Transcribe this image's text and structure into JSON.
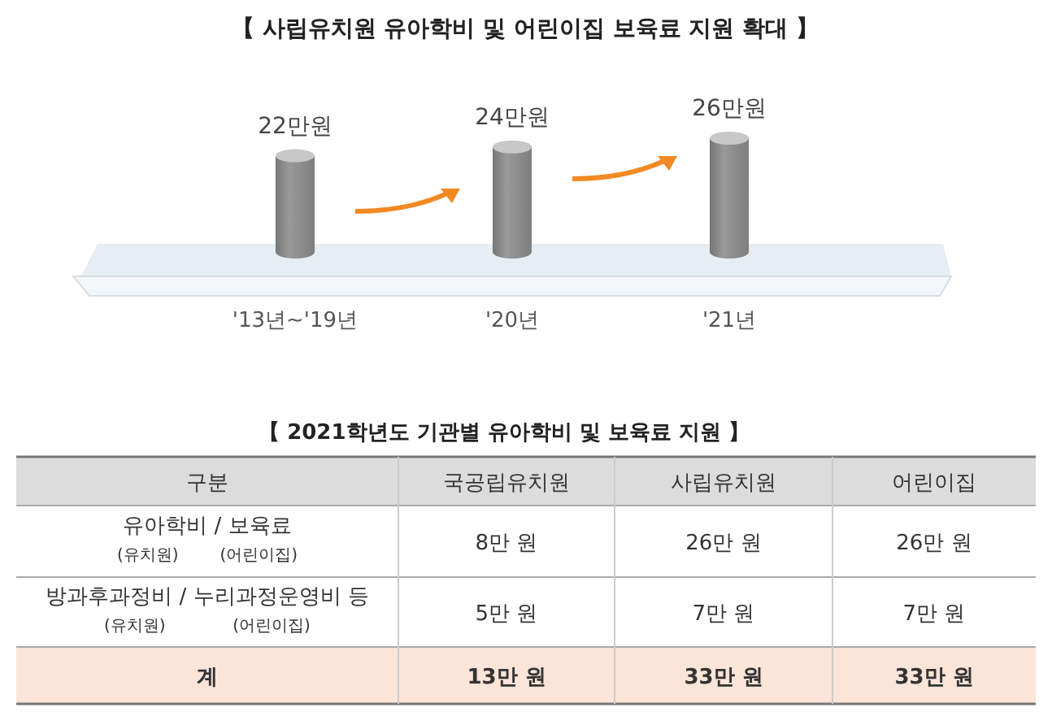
{
  "chart_data": [
    {
      "type": "bar",
      "title": "【 사립유치원 유아학비 및 어린이집 보육료 지원 확대 】",
      "categories": [
        "'13년~'19년",
        "'20년",
        "'21년"
      ],
      "values": [
        22,
        24,
        26
      ],
      "value_labels": [
        "22만원",
        "24만원",
        "26만원"
      ],
      "color": "#8c8c8c"
    },
    {
      "type": "other",
      "title": "【 2021학년도 기관별 유아학비 및 보육료 지원 】",
      "categories": [
        "구분",
        "국공립유치원",
        "사립유치원",
        "어린이집"
      ],
      "y_categories": [
        "유아학비 / 보육료\n(유치원)        (어린이집)",
        "방과후과정비 / 누리과정운영비 등\n(유치원)             (어린이집)",
        "계"
      ],
      "cell_labels": [
        [
          "8만 원",
          "26만 원",
          "26만 원"
        ],
        [
          "5만 원",
          "7만 원",
          "7만 원"
        ],
        [
          "13만 원",
          "33만 원",
          "33만 원"
        ]
      ]
    }
  ]
}
